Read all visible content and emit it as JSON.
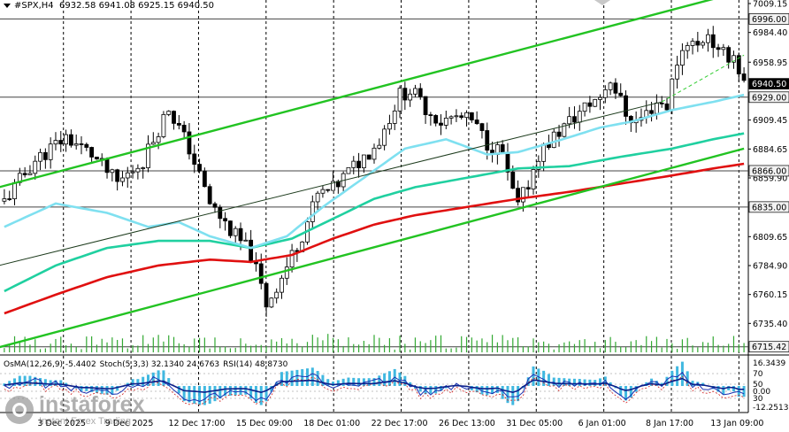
{
  "header": {
    "symbol": "#SPX,H4",
    "ohlc": "6932.58 6941.08 6925.15 6940.50"
  },
  "indicator_header": {
    "osma": "OsMA(12,26,9) -5.4402",
    "stoch": "Stoch(5,3,3) 32.1340 24.6763",
    "rsi": "RSI(14) 48.8730"
  },
  "logo": {
    "name": "instaforex",
    "tagline": "Instant Forex Trading"
  },
  "chart_data": [
    {
      "type": "candlestick",
      "title": "",
      "ylim": [
        6710.65,
        7009.15
      ],
      "price_axis_ticks": [
        7009.15,
        6984.4,
        6958.95,
        6909.45,
        6884.65,
        6859.9,
        6809.65,
        6784.9,
        6760.15,
        6735.4
      ],
      "price_labels": [
        {
          "value": 6996.0,
          "text": "6996.00",
          "style": "level"
        },
        {
          "value": 6940.5,
          "text": "6940.50",
          "style": "current"
        },
        {
          "value": 6929.0,
          "text": "6929.00",
          "style": "level"
        },
        {
          "value": 6866.0,
          "text": "6866.00",
          "style": "level"
        },
        {
          "value": 6835.0,
          "text": "6835.00",
          "style": "level"
        },
        {
          "value": 6715.42,
          "text": "6715.42",
          "style": "level"
        }
      ],
      "time_labels": [
        "3 Dec 2025",
        "9 Dec 2025",
        "12 Dec 17:00",
        "15 Dec 09:00",
        "18 Dec 01:00",
        "22 Dec 17:00",
        "26 Dec 13:00",
        "31 Dec 05:00",
        "6 Jan 01:00",
        "8 Jan 17:00",
        "13 Jan 09:00"
      ],
      "close_path": [
        [
          0,
          6840
        ],
        [
          6,
          6875
        ],
        [
          12,
          6895
        ],
        [
          17,
          6880
        ],
        [
          22,
          6855
        ],
        [
          27,
          6875
        ],
        [
          32,
          6920
        ],
        [
          36,
          6885
        ],
        [
          40,
          6838
        ],
        [
          44,
          6815
        ],
        [
          48,
          6795
        ],
        [
          51,
          6752
        ],
        [
          54,
          6775
        ],
        [
          58,
          6812
        ],
        [
          61,
          6845
        ],
        [
          64,
          6850
        ],
        [
          67,
          6865
        ],
        [
          70,
          6878
        ],
        [
          73,
          6892
        ],
        [
          75,
          6912
        ],
        [
          77,
          6931
        ],
        [
          79,
          6935
        ],
        [
          82,
          6920
        ],
        [
          85,
          6908
        ],
        [
          88,
          6912
        ],
        [
          91,
          6908
        ],
        [
          94,
          6890
        ],
        [
          97,
          6880
        ],
        [
          98,
          6860
        ],
        [
          100,
          6835
        ],
        [
          102,
          6855
        ],
        [
          104,
          6880
        ],
        [
          107,
          6895
        ],
        [
          110,
          6908
        ],
        [
          113,
          6920
        ],
        [
          116,
          6930
        ],
        [
          118,
          6945
        ],
        [
          121,
          6915
        ],
        [
          123,
          6908
        ],
        [
          125,
          6915
        ],
        [
          127,
          6925
        ],
        [
          129,
          6922
        ],
        [
          131,
          6960
        ],
        [
          133,
          6978
        ],
        [
          135,
          6972
        ],
        [
          137,
          6985
        ],
        [
          139,
          6965
        ],
        [
          142,
          6965
        ],
        [
          144,
          6940
        ]
      ],
      "ma_fast": [
        [
          0,
          6818
        ],
        [
          10,
          6838
        ],
        [
          20,
          6830
        ],
        [
          28,
          6818
        ],
        [
          34,
          6822
        ],
        [
          40,
          6810
        ],
        [
          48,
          6800
        ],
        [
          55,
          6810
        ],
        [
          62,
          6835
        ],
        [
          70,
          6860
        ],
        [
          78,
          6885
        ],
        [
          86,
          6893
        ],
        [
          94,
          6880
        ],
        [
          100,
          6882
        ],
        [
          108,
          6892
        ],
        [
          116,
          6903
        ],
        [
          122,
          6908
        ],
        [
          130,
          6918
        ],
        [
          138,
          6925
        ],
        [
          144,
          6931
        ]
      ],
      "ma_mid": [
        [
          0,
          6763
        ],
        [
          10,
          6785
        ],
        [
          20,
          6800
        ],
        [
          30,
          6806
        ],
        [
          40,
          6806
        ],
        [
          48,
          6800
        ],
        [
          56,
          6808
        ],
        [
          64,
          6825
        ],
        [
          72,
          6842
        ],
        [
          80,
          6852
        ],
        [
          90,
          6860
        ],
        [
          100,
          6868
        ],
        [
          110,
          6870
        ],
        [
          120,
          6878
        ],
        [
          130,
          6885
        ],
        [
          138,
          6893
        ],
        [
          144,
          6898
        ]
      ],
      "ma_slow": [
        [
          0,
          6744
        ],
        [
          10,
          6760
        ],
        [
          20,
          6775
        ],
        [
          30,
          6785
        ],
        [
          40,
          6790
        ],
        [
          48,
          6788
        ],
        [
          56,
          6794
        ],
        [
          64,
          6808
        ],
        [
          72,
          6820
        ],
        [
          80,
          6828
        ],
        [
          90,
          6835
        ],
        [
          100,
          6842
        ],
        [
          110,
          6848
        ],
        [
          120,
          6855
        ],
        [
          130,
          6862
        ],
        [
          138,
          6868
        ],
        [
          144,
          6872
        ]
      ]
    },
    {
      "type": "oscillator",
      "title": "",
      "ylim": [
        -12.2513,
        16.3439
      ],
      "axis_labels": [
        "16.3439",
        "70",
        "50",
        "0.00",
        "30",
        "-12.2513"
      ]
    }
  ]
}
